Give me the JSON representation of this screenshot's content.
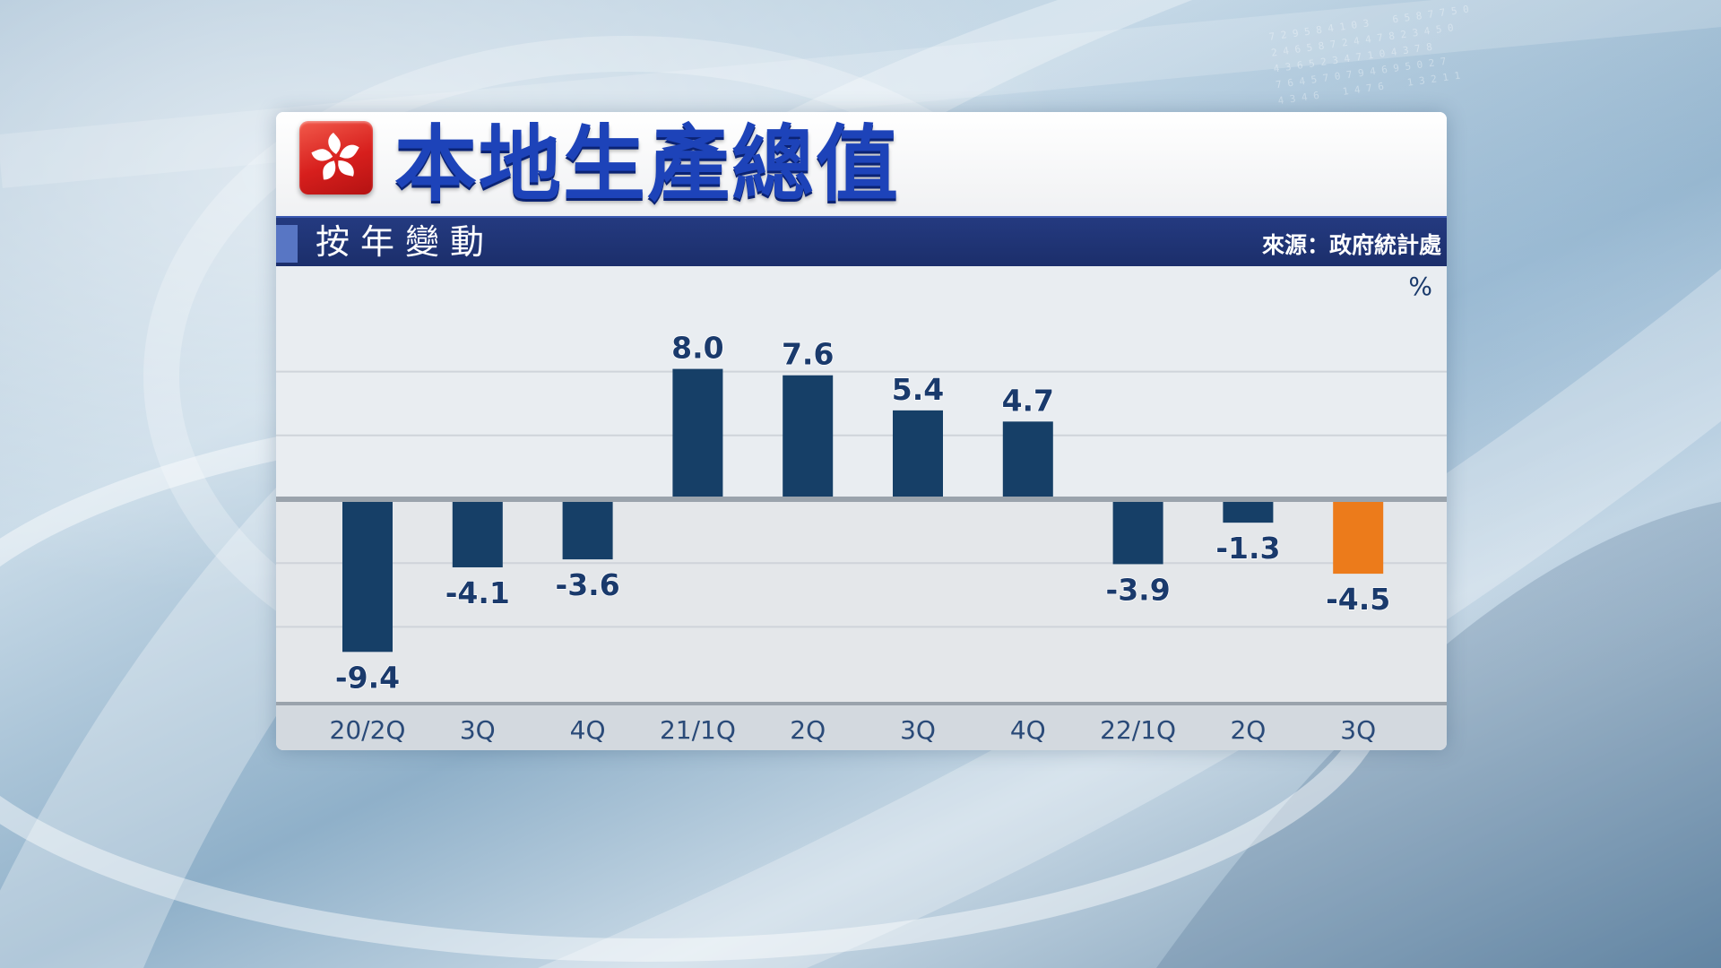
{
  "chart_data": {
    "type": "bar",
    "title": "本地生產總值",
    "subtitle": "按年變動",
    "source": "來源：政府統計處",
    "ylabel": "%",
    "categories": [
      "20/2Q",
      "3Q",
      "4Q",
      "21/1Q",
      "2Q",
      "3Q",
      "4Q",
      "22/1Q",
      "2Q",
      "3Q"
    ],
    "values": [
      -9.4,
      -4.1,
      -3.6,
      8.0,
      7.6,
      5.4,
      4.7,
      -3.9,
      -1.3,
      -4.5
    ],
    "value_labels": [
      "-9.4",
      "-4.1",
      "-3.6",
      "8.0",
      "7.6",
      "5.4",
      "4.7",
      "-3.9",
      "-1.3",
      "-4.5"
    ],
    "highlight_index": 9,
    "ylim": [
      -10,
      10
    ],
    "grid": true,
    "legend": "none"
  },
  "colors": {
    "bar": "#163f67",
    "highlight_bar": "#ec7b1b",
    "label": "#1a3a6c",
    "title": "#1d43b9",
    "subtitle_bar": "#1f3272",
    "flag": "#d71f1d"
  },
  "icons": {
    "flag": "hong-kong-flag-icon"
  }
}
